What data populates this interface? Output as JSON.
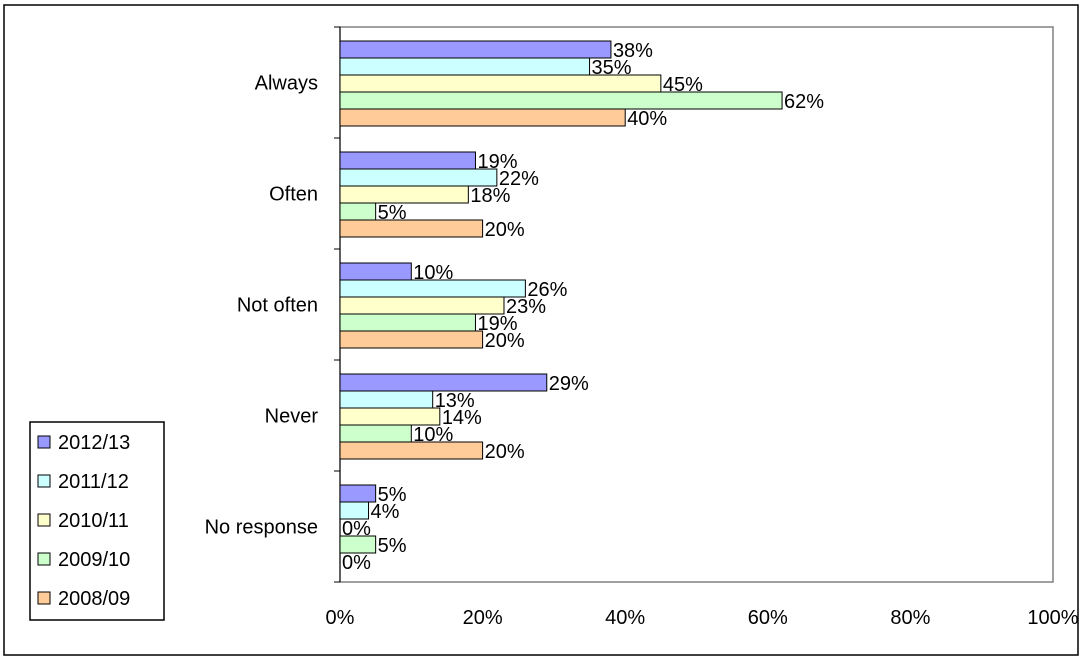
{
  "chart_data": {
    "type": "bar",
    "orientation": "horizontal",
    "categories": [
      "Always",
      "Often",
      "Not often",
      "Never",
      "No response"
    ],
    "series": [
      {
        "name": "2012/13",
        "color": "#9999ff",
        "values": [
          38,
          19,
          10,
          29,
          5
        ]
      },
      {
        "name": "2011/12",
        "color": "#ccffff",
        "values": [
          35,
          22,
          26,
          13,
          4
        ]
      },
      {
        "name": "2010/11",
        "color": "#ffffcc",
        "values": [
          45,
          18,
          23,
          14,
          0
        ]
      },
      {
        "name": "2009/10",
        "color": "#ccffcc",
        "values": [
          62,
          5,
          19,
          10,
          5
        ]
      },
      {
        "name": "2008/09",
        "color": "#ffcc99",
        "values": [
          40,
          20,
          20,
          20,
          0
        ]
      }
    ],
    "value_suffix": "%",
    "xlim": [
      0,
      100
    ],
    "x_ticks": [
      0,
      20,
      40,
      60,
      80,
      100
    ],
    "x_tick_labels": [
      "0%",
      "20%",
      "40%",
      "60%",
      "80%",
      "100%"
    ],
    "grid": false,
    "legend_position": "bottom-left",
    "plot_background": "#ffffff",
    "plot_border_color": "#808080"
  }
}
